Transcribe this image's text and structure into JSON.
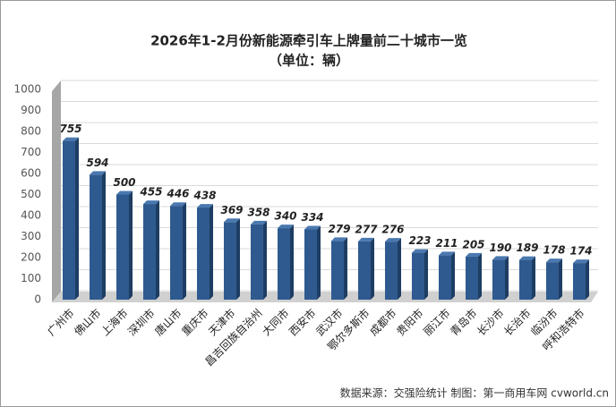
{
  "chart_data": {
    "type": "bar",
    "title": "2026年1-2月份新能源牵引车上牌量前二十城市一览",
    "subtitle": "（单位：辆）",
    "source": "数据来源：交强险统计  制图：第一商用车网 cvworld.cn",
    "categories": [
      "广州市",
      "佛山市",
      "上海市",
      "深圳市",
      "唐山市",
      "重庆市",
      "天津市",
      "昌吉回族自治州",
      "大同市",
      "西安市",
      "武汉市",
      "鄂尔多斯市",
      "成都市",
      "贵阳市",
      "丽江市",
      "青岛市",
      "长沙市",
      "长治市",
      "临汾市",
      "呼和浩特市"
    ],
    "values": [
      755,
      594,
      500,
      455,
      446,
      438,
      369,
      358,
      340,
      334,
      279,
      277,
      276,
      223,
      211,
      205,
      190,
      189,
      178,
      174
    ],
    "color": "#2f5a8f",
    "ylim": [
      0,
      1000
    ],
    "yticks": [
      0,
      100,
      200,
      300,
      400,
      500,
      600,
      700,
      800,
      900,
      1000
    ],
    "grid": true
  }
}
